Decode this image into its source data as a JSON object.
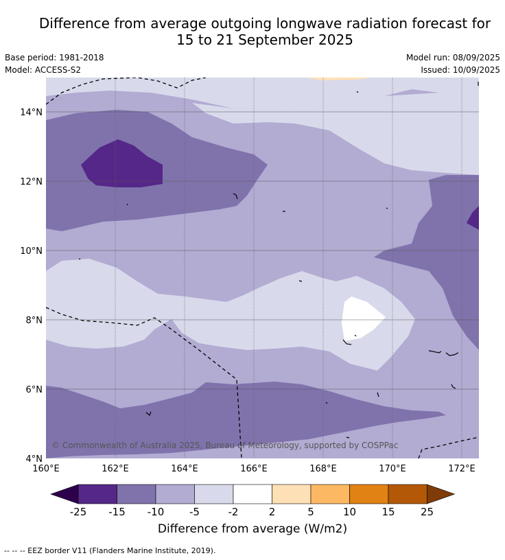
{
  "title_line1": "Difference from average outgoing longwave radiation forecast for",
  "title_line2": "15 to 21 September 2025",
  "info": {
    "base_period": "Base period: 1981-2018",
    "model": "Model: ACCESS-S2",
    "model_run": "Model run: 08/09/2025",
    "issued": "Issued: 10/09/2025"
  },
  "map": {
    "lat_labels": [
      "14°N",
      "12°N",
      "10°N",
      "8°N",
      "6°N",
      "4°N"
    ],
    "lon_labels": [
      "160°E",
      "162°E",
      "164°E",
      "166°E",
      "168°E",
      "170°E",
      "172°E"
    ],
    "copyright": "© Commonwealth of Australia 2025, Bureau of Meteorology, supported by COSPPac"
  },
  "colorbar": {
    "title": "Difference from average (W/m2)",
    "ticks": [
      "-25",
      "-15",
      "-10",
      "-5",
      "-2",
      "2",
      "5",
      "10",
      "15",
      "25"
    ],
    "colors": [
      "#2d004b",
      "#542788",
      "#8073ac",
      "#b2abd2",
      "#d8daeb",
      "#ffffff",
      "#fee0b6",
      "#fdb863",
      "#e08214",
      "#b35806",
      "#7f3b08"
    ]
  },
  "footer": "-- -- -- EEZ border V11 (Flanders Marine Institute, 2019)."
}
